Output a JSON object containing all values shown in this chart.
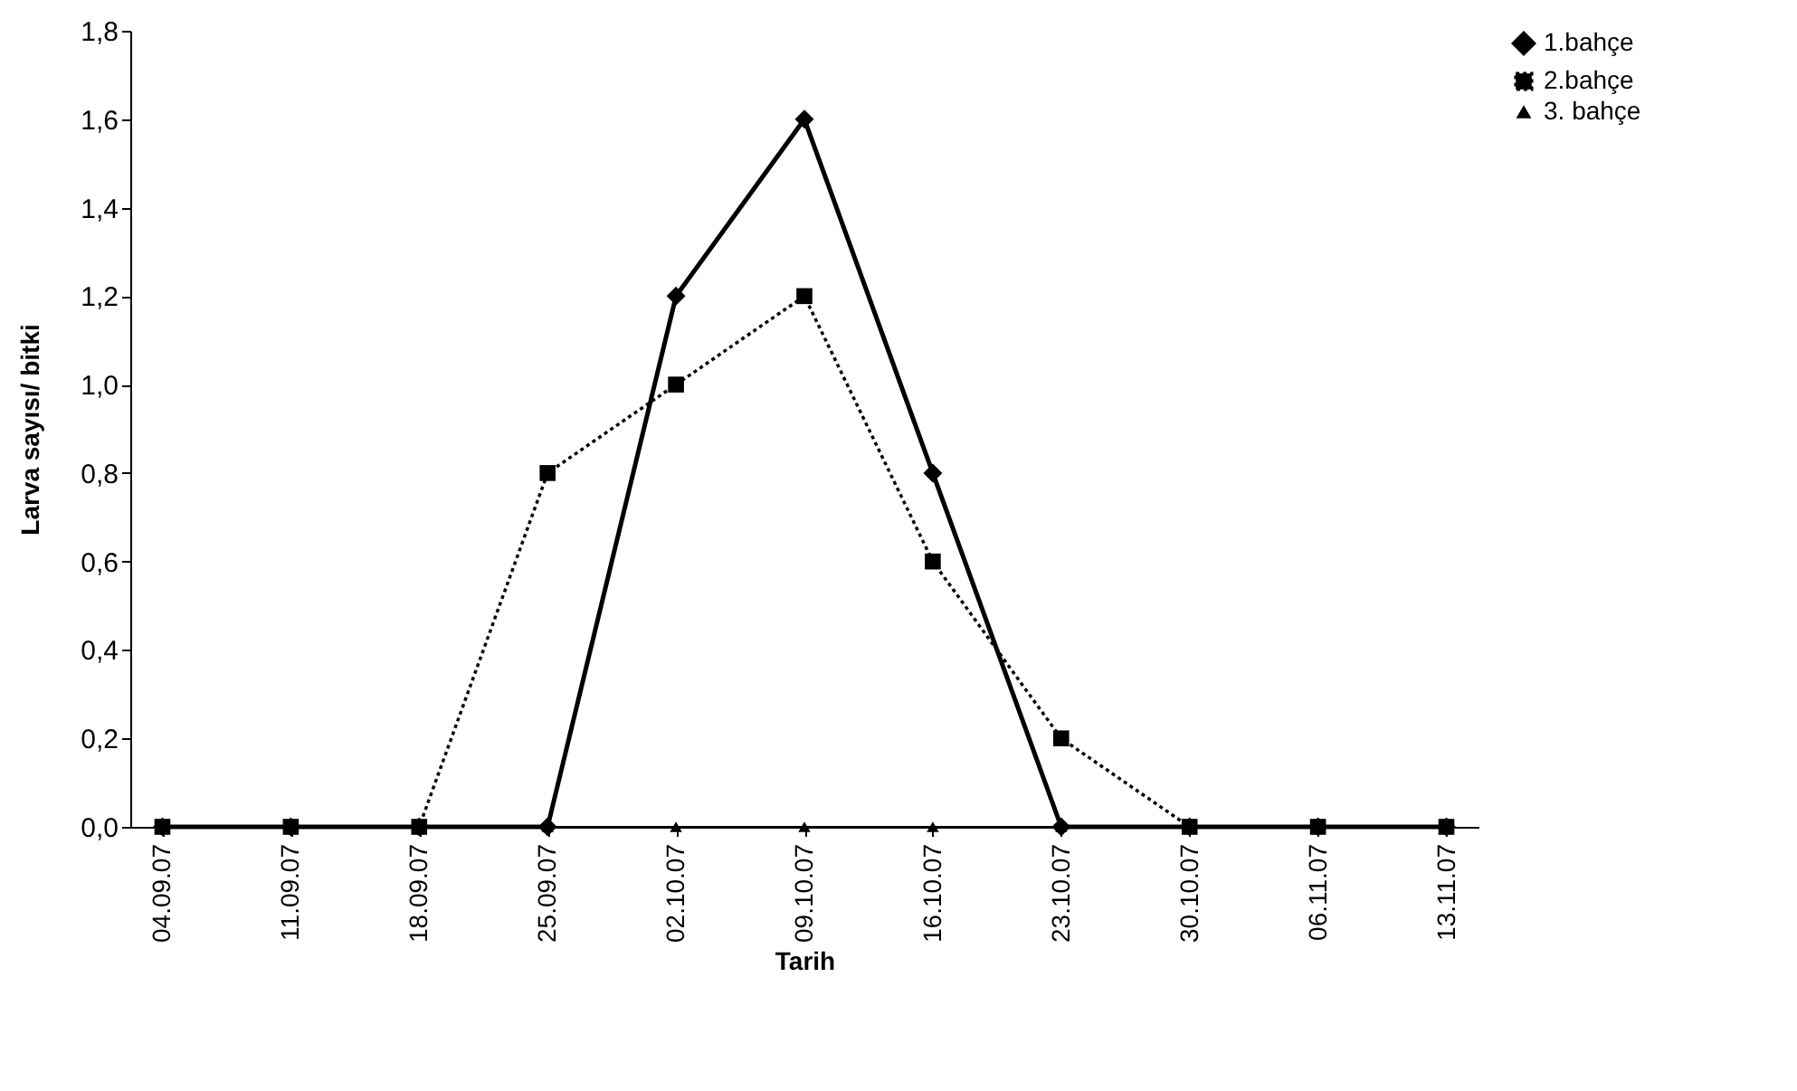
{
  "chart_data": {
    "type": "line",
    "xlabel": "Tarih",
    "ylabel": "Larva sayısı/ bitki",
    "categories": [
      "04.09.07",
      "11.09.07",
      "18.09.07",
      "25.09.07",
      "02.10.07",
      "09.10.07",
      "16.10.07",
      "23.10.07",
      "30.10.07",
      "06.11.07",
      "13.11.07"
    ],
    "ylim": [
      0,
      1.8
    ],
    "yticks": [
      {
        "value": 0,
        "label": "0,0"
      },
      {
        "value": 0.2,
        "label": "0,2"
      },
      {
        "value": 0.4,
        "label": "0,4"
      },
      {
        "value": 0.6,
        "label": "0,6"
      },
      {
        "value": 0.8,
        "label": "0,8"
      },
      {
        "value": 1,
        "label": "1,0"
      },
      {
        "value": 1.2,
        "label": "1,2"
      },
      {
        "value": 1.4,
        "label": "1,4"
      },
      {
        "value": 1.6,
        "label": "1,6"
      },
      {
        "value": 1.8,
        "label": "1,8"
      }
    ],
    "grid": false,
    "legend": "top right",
    "series": [
      {
        "name": "1.bahçe",
        "color": "#000000",
        "marker": "diamond",
        "line_style": "solid",
        "values": [
          0,
          0,
          0,
          0,
          1.2,
          1.6,
          0.8,
          0,
          0,
          0,
          0
        ]
      },
      {
        "name": "2.bahçe",
        "color": "#000000",
        "marker": "square",
        "line_style": "dotted",
        "values": [
          0,
          0,
          0,
          0.8,
          1.0,
          1.2,
          0.6,
          0.2,
          0,
          0,
          0
        ]
      },
      {
        "name": "3. bahçe",
        "color": "#000000",
        "marker": "triangle",
        "line_style": "solid",
        "values": [
          0,
          0,
          0,
          0,
          0,
          0,
          0,
          0,
          0,
          0,
          0
        ]
      }
    ]
  }
}
